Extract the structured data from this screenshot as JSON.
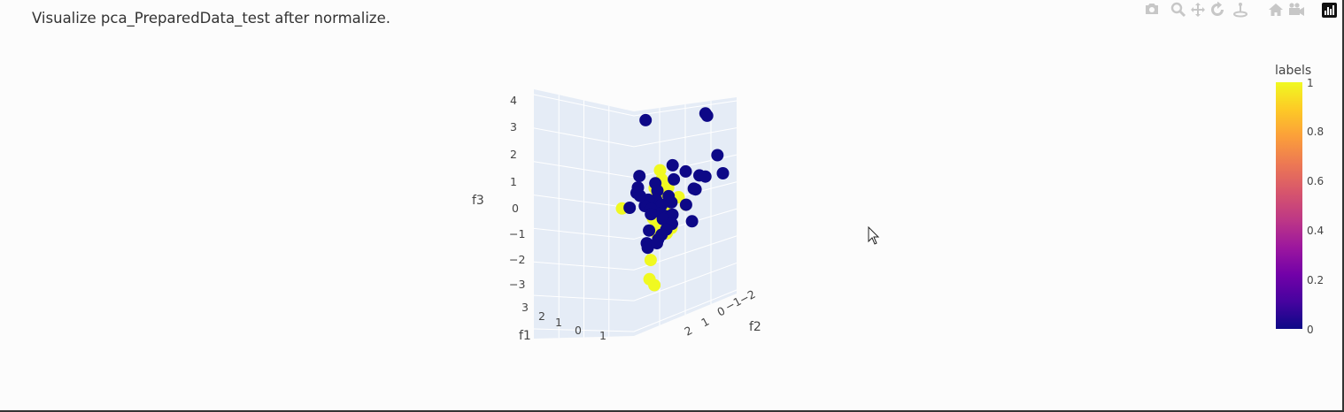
{
  "title": "Visualize pca_PreparedData_test after normalize.",
  "modebar": {
    "icons": [
      "camera-icon",
      "zoom-icon",
      "pan-icon",
      "orbit-icon",
      "turntable-icon",
      "home-icon",
      "camera-view-icon",
      "plotly-logo-icon"
    ]
  },
  "colors": {
    "pane": "#e5ecf6",
    "label_1": "#f0f921",
    "label_0": "#0d0887",
    "colorscale": [
      "#0d0887",
      "#46039f",
      "#7201a8",
      "#9c179e",
      "#bd3786",
      "#d8576b",
      "#ed7953",
      "#fb9f3a",
      "#fdca26",
      "#f0f921"
    ]
  },
  "chart_data": {
    "type": "scatter",
    "projection": "3d",
    "axes": {
      "f1": {
        "title": "f1",
        "ticks": [
          "3",
          "2",
          "1",
          "0",
          "1"
        ]
      },
      "f2": {
        "title": "f2",
        "ticks": [
          "2",
          "1",
          "0",
          "−1",
          "−2"
        ]
      },
      "f3": {
        "title": "f3",
        "ticks": [
          "4",
          "3",
          "2",
          "1",
          "0",
          "−1",
          "−2",
          "−3"
        ],
        "range": [
          -3,
          4
        ]
      }
    },
    "colorbar": {
      "title": "labels",
      "ticks": [
        "1",
        "0.8",
        "0.6",
        "0.4",
        "0.2",
        "0"
      ],
      "range": [
        0,
        1
      ]
    },
    "series": [
      {
        "name": "1",
        "points": [
          [
            0.2,
            0.1,
            1.5
          ],
          [
            0.5,
            0.2,
            1.2
          ],
          [
            0.8,
            0.0,
            0.9
          ],
          [
            0.0,
            0.3,
            0.8
          ],
          [
            0.3,
            -0.2,
            0.6
          ],
          [
            0.6,
            0.4,
            0.5
          ],
          [
            -0.2,
            0.1,
            0.4
          ],
          [
            0.1,
            0.5,
            0.3
          ],
          [
            0.4,
            -0.3,
            0.3
          ],
          [
            0.7,
            0.2,
            0.2
          ],
          [
            -0.4,
            0.0,
            0.1
          ],
          [
            0.2,
            0.3,
            0.0
          ],
          [
            0.5,
            -0.1,
            -0.1
          ],
          [
            0.9,
            0.3,
            -0.1
          ],
          [
            0.0,
            -0.4,
            -0.2
          ],
          [
            0.3,
            0.6,
            -0.3
          ],
          [
            0.6,
            0.0,
            -0.4
          ],
          [
            -0.1,
            0.2,
            -0.5
          ],
          [
            0.4,
            0.4,
            -0.6
          ],
          [
            0.8,
            -0.2,
            -0.7
          ],
          [
            0.1,
            0.1,
            -0.8
          ],
          [
            0.5,
            0.5,
            -0.9
          ],
          [
            0.2,
            -0.3,
            -1.0
          ],
          [
            1.2,
            -0.8,
            0.2
          ],
          [
            -1.5,
            1.3,
            -0.1
          ],
          [
            0.4,
            0.8,
            -1.9
          ],
          [
            0.6,
            1.0,
            -2.6
          ],
          [
            0.9,
            0.9,
            -2.8
          ],
          [
            0.3,
            0.2,
            1.0
          ],
          [
            -0.3,
            0.4,
            0.2
          ],
          [
            1.0,
            -0.5,
            0.5
          ],
          [
            0.7,
            0.7,
            0.0
          ]
        ]
      },
      {
        "name": "0",
        "points": [
          [
            1.5,
            -1.8,
            3.7
          ],
          [
            1.5,
            -1.9,
            3.6
          ],
          [
            -1.0,
            0.2,
            3.3
          ],
          [
            0.6,
            -0.4,
            1.7
          ],
          [
            1.2,
            -0.8,
            1.5
          ],
          [
            1.4,
            -1.5,
            1.3
          ],
          [
            1.8,
            -1.6,
            1.3
          ],
          [
            2.0,
            -2.2,
            2.1
          ],
          [
            2.2,
            -2.4,
            1.4
          ],
          [
            -0.8,
            0.7,
            1.2
          ],
          [
            -0.4,
            0.0,
            0.9
          ],
          [
            1.5,
            -1.2,
            0.8
          ],
          [
            -1.1,
            0.6,
            0.7
          ],
          [
            0.1,
            0.2,
            0.7
          ],
          [
            1.0,
            0.1,
            0.6
          ],
          [
            -0.6,
            1.0,
            0.6
          ],
          [
            0.3,
            0.4,
            0.4
          ],
          [
            0.8,
            -0.2,
            0.3
          ],
          [
            -0.9,
            0.1,
            0.2
          ],
          [
            0.5,
            0.2,
            0.2
          ],
          [
            1.7,
            -0.5,
            0.3
          ],
          [
            -0.3,
            0.7,
            0.1
          ],
          [
            0.0,
            0.5,
            0.0
          ],
          [
            -1.4,
            0.9,
            -0.1
          ],
          [
            0.6,
            0.3,
            -0.1
          ],
          [
            0.9,
            0.1,
            -0.2
          ],
          [
            1.2,
            0.0,
            -0.1
          ],
          [
            2.1,
            -0.6,
            -0.3
          ],
          [
            -0.5,
            0.2,
            -0.3
          ],
          [
            0.3,
            0.0,
            -0.4
          ],
          [
            1.0,
            -0.1,
            -0.5
          ],
          [
            1.4,
            0.5,
            -0.6
          ],
          [
            0.1,
            0.7,
            -0.8
          ],
          [
            0.8,
            0.4,
            -0.9
          ],
          [
            1.1,
            0.8,
            -1.0
          ],
          [
            0.5,
            1.1,
            -1.2
          ],
          [
            0.9,
            1.3,
            -1.3
          ],
          [
            1.3,
            1.0,
            -1.1
          ],
          [
            -0.9,
            0.6,
            0.4
          ],
          [
            1.8,
            -0.9,
            0.9
          ],
          [
            0.4,
            -0.6,
            1.1
          ]
        ]
      }
    ]
  }
}
